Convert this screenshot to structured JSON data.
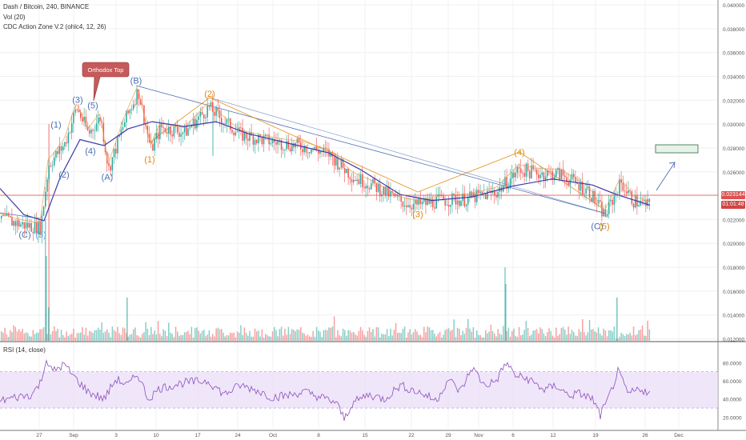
{
  "header": {
    "symbol_line": "Dash / Bitcoin, 240, BINANCE",
    "volume_line": "Vol (20)",
    "indicator_line": "CDC Action Zone V.2 (ohlc4, 12, 26)"
  },
  "rsi": {
    "label": "RSI (14, close)"
  },
  "current_price": "0.023144",
  "countdown": "01:01:48",
  "callout": "Orthodox Top",
  "colors": {
    "bull": "#26a69a",
    "bear": "#ef5350",
    "ema_slow": "#3a3aa8",
    "wave_blue": "#4c6fb3",
    "wave_orange": "#e08a0c",
    "wave_light": "#64a9e6",
    "price_line": "#e05050",
    "rsi_line": "#8a4fbf",
    "rsi_band": "#e9dcf7",
    "callout": "#c65a5a"
  },
  "chart_data": {
    "type": "candlestick",
    "x_ticks": [
      "27",
      "Sep",
      "3",
      "10",
      "17",
      "24",
      "Oct",
      "8",
      "15",
      "22",
      "29",
      "Nov",
      "6",
      "12",
      "19",
      "26",
      "Dec"
    ],
    "y_ticks": [
      "0.040000",
      "0.038000",
      "0.036000",
      "0.034000",
      "0.032000",
      "0.030000",
      "0.028000",
      "0.026000",
      "0.024000",
      "0.022000",
      "0.020000",
      "0.018000",
      "0.016000",
      "0.014000",
      "0.012000"
    ],
    "rsi_ticks": [
      "80.0000",
      "60.0000",
      "40.0000",
      "20.0000"
    ],
    "price_path": [
      [
        0,
        0.0221
      ],
      [
        25,
        0.0216
      ],
      [
        50,
        0.0213
      ],
      [
        60,
        0.0266
      ],
      [
        80,
        0.0283
      ],
      [
        95,
        0.0314
      ],
      [
        110,
        0.0292
      ],
      [
        125,
        0.0306
      ],
      [
        135,
        0.0262
      ],
      [
        155,
        0.0302
      ],
      [
        172,
        0.0328
      ],
      [
        188,
        0.0278
      ],
      [
        200,
        0.0297
      ],
      [
        230,
        0.0293
      ],
      [
        260,
        0.0314
      ],
      [
        280,
        0.0302
      ],
      [
        300,
        0.0291
      ],
      [
        340,
        0.0285
      ],
      [
        380,
        0.0281
      ],
      [
        410,
        0.0275
      ],
      [
        440,
        0.0256
      ],
      [
        470,
        0.0247
      ],
      [
        500,
        0.0235
      ],
      [
        520,
        0.0232
      ],
      [
        550,
        0.0236
      ],
      [
        580,
        0.0237
      ],
      [
        620,
        0.0243
      ],
      [
        648,
        0.0262
      ],
      [
        670,
        0.0259
      ],
      [
        700,
        0.0258
      ],
      [
        735,
        0.0244
      ],
      [
        755,
        0.0223
      ],
      [
        775,
        0.0251
      ],
      [
        790,
        0.0236
      ],
      [
        812,
        0.0231
      ]
    ],
    "slow_ema_path": [
      [
        0,
        0.0246
      ],
      [
        30,
        0.0224
      ],
      [
        55,
        0.0219
      ],
      [
        75,
        0.0255
      ],
      [
        100,
        0.0287
      ],
      [
        130,
        0.0282
      ],
      [
        160,
        0.0296
      ],
      [
        190,
        0.0302
      ],
      [
        230,
        0.0298
      ],
      [
        270,
        0.0302
      ],
      [
        310,
        0.0292
      ],
      [
        360,
        0.0284
      ],
      [
        410,
        0.0276
      ],
      [
        450,
        0.0262
      ],
      [
        500,
        0.0241
      ],
      [
        540,
        0.0236
      ],
      [
        590,
        0.0239
      ],
      [
        640,
        0.0248
      ],
      [
        690,
        0.0254
      ],
      [
        740,
        0.0249
      ],
      [
        770,
        0.0241
      ],
      [
        812,
        0.0232
      ]
    ],
    "wave_labels": [
      {
        "text": "(C)",
        "x": 31,
        "price": 0.0205,
        "series": "blue"
      },
      {
        "text": "(5)",
        "x": 51,
        "price": 0.0205,
        "series": "light"
      },
      {
        "text": "(1)",
        "x": 70,
        "price": 0.0297,
        "series": "blue"
      },
      {
        "text": "(2)",
        "x": 80,
        "price": 0.0255,
        "series": "blue"
      },
      {
        "text": "(3)",
        "x": 97,
        "price": 0.0318,
        "series": "blue"
      },
      {
        "text": "(4)",
        "x": 113,
        "price": 0.0275,
        "series": "blue"
      },
      {
        "text": "(5)",
        "x": 116,
        "price": 0.0313,
        "series": "blue"
      },
      {
        "text": "(A)",
        "x": 134,
        "price": 0.0253,
        "series": "blue"
      },
      {
        "text": "(B)",
        "x": 170,
        "price": 0.0334,
        "series": "blue"
      },
      {
        "text": "(1)",
        "x": 187,
        "price": 0.0268,
        "series": "orange"
      },
      {
        "text": "(2)",
        "x": 262,
        "price": 0.0323,
        "series": "orange"
      },
      {
        "text": "(3)",
        "x": 522,
        "price": 0.0222,
        "series": "orange"
      },
      {
        "text": "(4)",
        "x": 649,
        "price": 0.0274,
        "series": "orange"
      },
      {
        "text": "(C)",
        "x": 746,
        "price": 0.0212,
        "series": "blue"
      },
      {
        "text": "(5)",
        "x": 755,
        "price": 0.0212,
        "series": "orange"
      }
    ],
    "volume_spikes": [
      [
        57,
        0.022
      ],
      [
        60,
        0.03
      ],
      [
        631,
        0.018
      ],
      [
        770,
        0.012
      ]
    ],
    "rsi_points": [
      [
        0,
        38
      ],
      [
        20,
        42
      ],
      [
        40,
        45
      ],
      [
        52,
        60
      ],
      [
        57,
        85
      ],
      [
        65,
        70
      ],
      [
        80,
        78
      ],
      [
        95,
        62
      ],
      [
        110,
        48
      ],
      [
        130,
        40
      ],
      [
        145,
        62
      ],
      [
        160,
        55
      ],
      [
        172,
        68
      ],
      [
        185,
        40
      ],
      [
        200,
        52
      ],
      [
        230,
        58
      ],
      [
        260,
        60
      ],
      [
        280,
        45
      ],
      [
        300,
        55
      ],
      [
        320,
        50
      ],
      [
        340,
        42
      ],
      [
        360,
        44
      ],
      [
        380,
        48
      ],
      [
        400,
        42
      ],
      [
        420,
        36
      ],
      [
        430,
        18
      ],
      [
        440,
        35
      ],
      [
        460,
        45
      ],
      [
        480,
        40
      ],
      [
        500,
        55
      ],
      [
        515,
        50
      ],
      [
        530,
        45
      ],
      [
        545,
        38
      ],
      [
        560,
        62
      ],
      [
        575,
        48
      ],
      [
        590,
        75
      ],
      [
        605,
        55
      ],
      [
        620,
        60
      ],
      [
        632,
        80
      ],
      [
        645,
        65
      ],
      [
        660,
        62
      ],
      [
        680,
        50
      ],
      [
        695,
        55
      ],
      [
        710,
        44
      ],
      [
        725,
        46
      ],
      [
        740,
        40
      ],
      [
        750,
        22
      ],
      [
        760,
        40
      ],
      [
        772,
        70
      ],
      [
        785,
        45
      ],
      [
        800,
        52
      ],
      [
        812,
        45
      ]
    ]
  }
}
